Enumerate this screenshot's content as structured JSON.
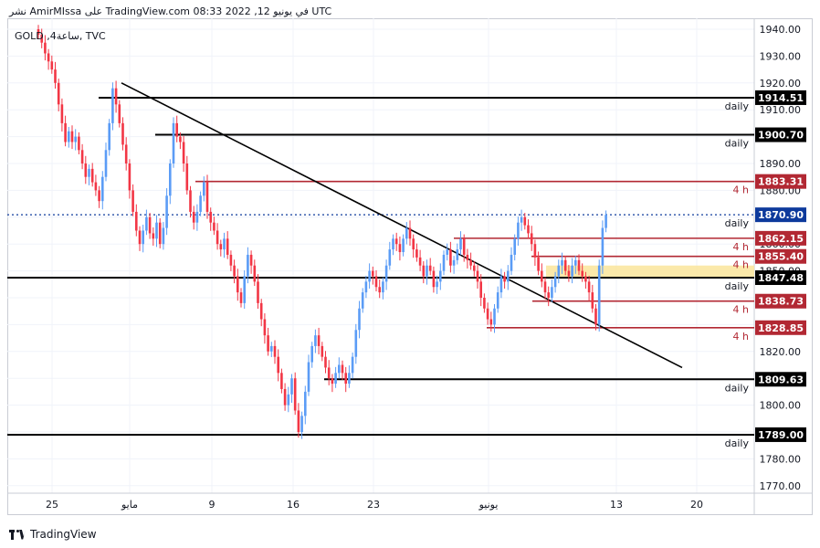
{
  "header": {
    "published_text": "نشر AmirMIssa على TradingView.com 08:33 2022 ,12 في يونيو UTC"
  },
  "symbol": {
    "label": "GOLD ,ساعة4, TVC"
  },
  "footer": {
    "logo_icon": "tradingview-logo-icon",
    "brand": "TradingView"
  },
  "colors": {
    "up": "#5b9cf6",
    "down": "#f23645",
    "level_daily": "#000000",
    "level_4h": "#b22833",
    "current_price": "#0d3a9c",
    "zone": "#fbe7a1"
  },
  "chart_data": {
    "type": "candlestick",
    "title": "",
    "ylim": [
      1770,
      1940
    ],
    "yticks": [
      1940,
      1930,
      1920,
      1910,
      1900,
      1890,
      1880,
      1870,
      1860,
      1850,
      1840,
      1830,
      1820,
      1810,
      1800,
      1790,
      1780,
      1770
    ],
    "xticks": [
      "25",
      "مايو",
      "9",
      "16",
      "23",
      "يونيو",
      "13",
      "20"
    ],
    "current_price": 1870.9,
    "levels": [
      {
        "price": 1914.51,
        "label": "1914.51",
        "tag": "daily",
        "style": "daily"
      },
      {
        "price": 1900.7,
        "label": "1900.70",
        "tag": "daily",
        "style": "daily"
      },
      {
        "price": 1883.31,
        "label": "1883.31",
        "tag": "4 h",
        "style": "4h"
      },
      {
        "price": 1870.9,
        "label": "1870.90",
        "tag": "daily",
        "style": "current"
      },
      {
        "price": 1862.15,
        "label": "1862.15",
        "tag": "4 h",
        "style": "4h"
      },
      {
        "price": 1855.4,
        "label": "1855.40",
        "tag": "4 h",
        "style": "4h"
      },
      {
        "price": 1847.48,
        "label": "1847.48",
        "tag": "daily",
        "style": "daily"
      },
      {
        "price": 1838.73,
        "label": "1838.73",
        "tag": "4 h",
        "style": "4h"
      },
      {
        "price": 1828.85,
        "label": "1828.85",
        "tag": "4 h",
        "style": "4h"
      },
      {
        "price": 1809.63,
        "label": "1809.63",
        "tag": "daily",
        "style": "daily"
      },
      {
        "price": 1789.0,
        "label": "1789.00",
        "tag": "daily",
        "style": "daily"
      }
    ],
    "zone": {
      "from": 1847.48,
      "to": 1852.0
    },
    "trendline": {
      "from_index": 20,
      "from_price": 1920.0,
      "to_index": 190,
      "to_price": 1814.0
    },
    "series": [
      {
        "name": "",
        "close_path": [
          1938,
          1935,
          1931,
          1928,
          1925,
          1920,
          1912,
          1905,
          1898,
          1902,
          1898,
          1900,
          1895,
          1890,
          1885,
          1888,
          1883,
          1880,
          1876,
          1885,
          1895,
          1905,
          1918,
          1912,
          1905,
          1897,
          1890,
          1880,
          1872,
          1865,
          1860,
          1865,
          1870,
          1864,
          1862,
          1868,
          1860,
          1866,
          1878,
          1890,
          1905,
          1900,
          1898,
          1890,
          1880,
          1872,
          1868,
          1872,
          1878,
          1883,
          1872,
          1868,
          1865,
          1860,
          1858,
          1862,
          1856,
          1852,
          1848,
          1842,
          1838,
          1848,
          1856,
          1852,
          1846,
          1838,
          1832,
          1826,
          1820,
          1822,
          1818,
          1812,
          1806,
          1800,
          1804,
          1810,
          1798,
          1790,
          1796,
          1805,
          1816,
          1822,
          1826,
          1822,
          1818,
          1814,
          1810,
          1808,
          1812,
          1815,
          1812,
          1808,
          1812,
          1818,
          1828,
          1836,
          1842,
          1846,
          1850,
          1848,
          1844,
          1842,
          1846,
          1852,
          1858,
          1862,
          1860,
          1857,
          1862,
          1866,
          1862,
          1858,
          1855,
          1852,
          1848,
          1852,
          1850,
          1844,
          1846,
          1850,
          1856,
          1858,
          1852,
          1854,
          1858,
          1862,
          1856,
          1854,
          1852,
          1850,
          1846,
          1840,
          1836,
          1832,
          1830,
          1836,
          1842,
          1848,
          1846,
          1850,
          1856,
          1862,
          1868,
          1870,
          1867,
          1864,
          1860,
          1855,
          1850,
          1846,
          1842,
          1840,
          1844,
          1848,
          1852,
          1854,
          1850,
          1848,
          1852,
          1854,
          1850,
          1848,
          1846,
          1842,
          1836,
          1830,
          1852,
          1866,
          1870.9
        ]
      }
    ]
  }
}
